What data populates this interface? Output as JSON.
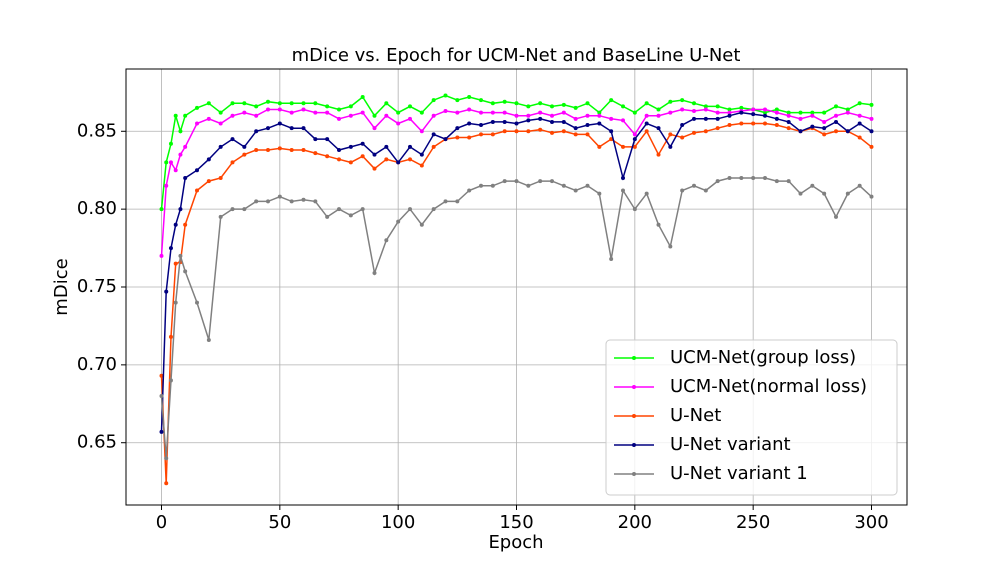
{
  "chart_data": {
    "type": "line",
    "title": "mDice vs. Epoch for UCM-Net and BaseLine U-Net",
    "x_label": "Epoch",
    "y_label": "mDice",
    "x": [
      0,
      2,
      4,
      6,
      8,
      10,
      15,
      20,
      25,
      30,
      35,
      40,
      45,
      50,
      55,
      60,
      65,
      70,
      75,
      80,
      85,
      90,
      95,
      100,
      105,
      110,
      115,
      120,
      125,
      130,
      135,
      140,
      145,
      150,
      155,
      160,
      165,
      170,
      175,
      180,
      185,
      190,
      195,
      200,
      205,
      210,
      215,
      220,
      225,
      230,
      235,
      240,
      245,
      250,
      255,
      260,
      265,
      270,
      275,
      280,
      285,
      290,
      295,
      300
    ],
    "series": [
      {
        "name": "UCM-Net(group loss)",
        "color": "#00ff00",
        "values": [
          0.8,
          0.83,
          0.842,
          0.86,
          0.85,
          0.86,
          0.865,
          0.868,
          0.862,
          0.868,
          0.868,
          0.866,
          0.869,
          0.868,
          0.868,
          0.868,
          0.868,
          0.866,
          0.864,
          0.866,
          0.872,
          0.86,
          0.868,
          0.862,
          0.866,
          0.862,
          0.87,
          0.873,
          0.87,
          0.872,
          0.87,
          0.868,
          0.869,
          0.868,
          0.866,
          0.868,
          0.866,
          0.867,
          0.865,
          0.868,
          0.862,
          0.87,
          0.866,
          0.862,
          0.868,
          0.864,
          0.869,
          0.87,
          0.868,
          0.866,
          0.866,
          0.864,
          0.865,
          0.864,
          0.862,
          0.864,
          0.862,
          0.862,
          0.862,
          0.862,
          0.866,
          0.864,
          0.868,
          0.867
        ]
      },
      {
        "name": "UCM-Net(normal loss)",
        "color": "#ff00ff",
        "values": [
          0.77,
          0.815,
          0.83,
          0.825,
          0.835,
          0.84,
          0.855,
          0.858,
          0.855,
          0.86,
          0.862,
          0.86,
          0.864,
          0.864,
          0.862,
          0.864,
          0.862,
          0.862,
          0.858,
          0.86,
          0.862,
          0.852,
          0.86,
          0.855,
          0.858,
          0.85,
          0.86,
          0.863,
          0.862,
          0.864,
          0.862,
          0.862,
          0.862,
          0.86,
          0.86,
          0.862,
          0.86,
          0.862,
          0.858,
          0.86,
          0.86,
          0.858,
          0.857,
          0.848,
          0.86,
          0.86,
          0.862,
          0.864,
          0.863,
          0.864,
          0.862,
          0.862,
          0.863,
          0.864,
          0.864,
          0.862,
          0.86,
          0.858,
          0.86,
          0.856,
          0.86,
          0.862,
          0.86,
          0.858
        ]
      },
      {
        "name": "U-Net",
        "color": "#ff4500",
        "values": [
          0.693,
          0.624,
          0.718,
          0.765,
          0.766,
          0.79,
          0.812,
          0.818,
          0.82,
          0.83,
          0.835,
          0.838,
          0.838,
          0.839,
          0.838,
          0.838,
          0.836,
          0.834,
          0.832,
          0.83,
          0.834,
          0.826,
          0.832,
          0.83,
          0.832,
          0.828,
          0.84,
          0.845,
          0.846,
          0.846,
          0.848,
          0.848,
          0.85,
          0.85,
          0.85,
          0.851,
          0.849,
          0.85,
          0.848,
          0.848,
          0.84,
          0.845,
          0.84,
          0.84,
          0.85,
          0.835,
          0.848,
          0.846,
          0.849,
          0.85,
          0.852,
          0.854,
          0.855,
          0.855,
          0.855,
          0.854,
          0.852,
          0.85,
          0.852,
          0.848,
          0.85,
          0.85,
          0.846,
          0.84
        ]
      },
      {
        "name": "U-Net variant",
        "color": "#000080",
        "values": [
          0.657,
          0.747,
          0.775,
          0.79,
          0.8,
          0.82,
          0.825,
          0.832,
          0.84,
          0.845,
          0.84,
          0.85,
          0.852,
          0.855,
          0.852,
          0.852,
          0.845,
          0.845,
          0.838,
          0.84,
          0.842,
          0.835,
          0.84,
          0.83,
          0.84,
          0.835,
          0.848,
          0.845,
          0.852,
          0.855,
          0.854,
          0.856,
          0.856,
          0.855,
          0.857,
          0.858,
          0.856,
          0.856,
          0.852,
          0.854,
          0.855,
          0.85,
          0.82,
          0.845,
          0.855,
          0.852,
          0.84,
          0.854,
          0.858,
          0.858,
          0.858,
          0.86,
          0.862,
          0.861,
          0.86,
          0.858,
          0.856,
          0.85,
          0.853,
          0.852,
          0.856,
          0.85,
          0.855,
          0.85
        ]
      },
      {
        "name": "U-Net variant 1",
        "color": "#808080",
        "values": [
          0.68,
          0.64,
          0.69,
          0.74,
          0.77,
          0.76,
          0.74,
          0.716,
          0.795,
          0.8,
          0.8,
          0.805,
          0.805,
          0.808,
          0.805,
          0.806,
          0.805,
          0.795,
          0.8,
          0.796,
          0.8,
          0.759,
          0.78,
          0.792,
          0.8,
          0.79,
          0.8,
          0.805,
          0.805,
          0.812,
          0.815,
          0.815,
          0.818,
          0.818,
          0.815,
          0.818,
          0.818,
          0.815,
          0.812,
          0.815,
          0.81,
          0.768,
          0.812,
          0.8,
          0.81,
          0.79,
          0.776,
          0.812,
          0.815,
          0.812,
          0.818,
          0.82,
          0.82,
          0.82,
          0.82,
          0.818,
          0.818,
          0.81,
          0.815,
          0.81,
          0.795,
          0.81,
          0.815,
          0.808
        ]
      }
    ],
    "xlim": [
      -15,
      315
    ],
    "xticks": [
      0,
      50,
      100,
      150,
      200,
      250,
      300
    ],
    "ylim": [
      0.61,
      0.89
    ],
    "yticks": [
      0.65,
      {
        "value": 0.7,
        "label": "0.70"
      },
      0.75,
      {
        "value": 0.8,
        "label": "0.80"
      },
      0.85
    ],
    "grid": true,
    "legend": "lower right"
  }
}
